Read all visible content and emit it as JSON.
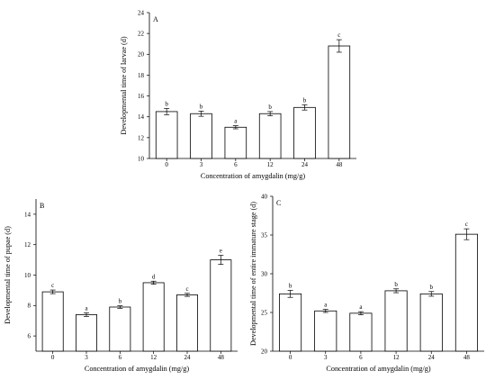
{
  "colors": {
    "axis": "#000000",
    "bar_fill": "#ffffff",
    "bar_stroke": "#000000",
    "background": "#ffffff"
  },
  "chart_data": [
    {
      "panel": "A",
      "type": "bar",
      "categories": [
        "0",
        "3",
        "6",
        "12",
        "24",
        "48"
      ],
      "values": [
        14.5,
        14.3,
        13.0,
        14.3,
        14.9,
        20.8
      ],
      "errors": [
        0.3,
        0.25,
        0.15,
        0.2,
        0.25,
        0.6
      ],
      "letters": [
        "b",
        "b",
        "a",
        "b",
        "b",
        "c"
      ],
      "xlabel": "Concentration of amygdalin (mg/g)",
      "ylabel": "Developmental time of larvae (d)",
      "ylim": [
        10,
        24
      ],
      "yticks": [
        10,
        12,
        14,
        16,
        18,
        20,
        22,
        24
      ],
      "grid": false
    },
    {
      "panel": "B",
      "type": "bar",
      "categories": [
        "0",
        "3",
        "6",
        "12",
        "24",
        "48"
      ],
      "values": [
        8.9,
        7.4,
        7.9,
        9.5,
        8.7,
        11.0
      ],
      "errors": [
        0.12,
        0.12,
        0.08,
        0.1,
        0.1,
        0.3
      ],
      "letters": [
        "c",
        "a",
        "b",
        "d",
        "c",
        "e"
      ],
      "xlabel": "Concentration of amygdalin (mg/g)",
      "ylabel": "Developmental time of pupae (d)",
      "ylim": [
        5,
        15
      ],
      "yticks": [
        6,
        8,
        10,
        12,
        14
      ],
      "grid": false
    },
    {
      "panel": "C",
      "type": "bar",
      "categories": [
        "0",
        "3",
        "6",
        "12",
        "24",
        "48"
      ],
      "values": [
        27.4,
        25.2,
        24.9,
        27.8,
        27.4,
        35.1
      ],
      "errors": [
        0.45,
        0.2,
        0.2,
        0.25,
        0.3,
        0.7
      ],
      "letters": [
        "b",
        "a",
        "a",
        "b",
        "b",
        "c"
      ],
      "xlabel": "Concentration of amygdalin (mg/g)",
      "ylabel": "Developmental time of entire immature stage (d)",
      "ylim": [
        20,
        40
      ],
      "yticks": [
        20,
        25,
        30,
        35,
        40
      ],
      "grid": false
    }
  ]
}
